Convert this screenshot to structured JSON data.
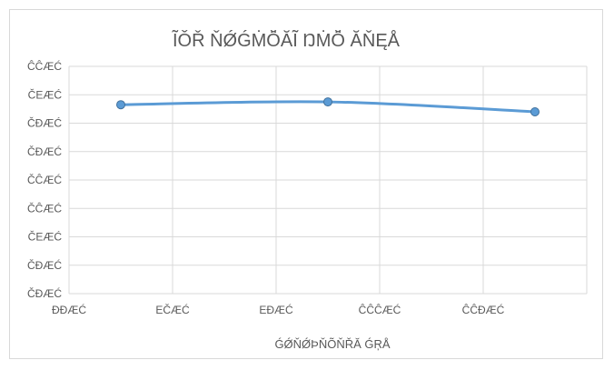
{
  "chart_data": {
    "type": "line",
    "title": "ĨǑŘ ŇǾǴṀǑ̈ĂĨ ŊṀǑ̈ ĂŇĘÅ",
    "xlabel": "ǴǾŇǾÞŇÕŇŘĂ ǴŖÅ",
    "ylabel": "",
    "x_tick_labels": [
      "ĐĐÆĆ",
      "EČÆĆ",
      "EĐÆĆ",
      "ĈĈĈÆĆ",
      "ĈĈĐÆĆ"
    ],
    "y_tick_labels": [
      "ĈĈÆĆ",
      "ČEÆĆ",
      "ČĐÆĆ",
      "ČĐÆĆ",
      "ČĈÆĆ",
      "ČĈÆĆ",
      "ČEÆĆ",
      "ČĐÆĆ",
      "ČĐÆĆ"
    ],
    "grid": true,
    "legend": "none",
    "series_color": "#5b9bd5",
    "x_positions": [
      0.5,
      2.5,
      4.5
    ],
    "series": [
      {
        "values": [
          6.65,
          6.75,
          6.4
        ]
      }
    ]
  }
}
